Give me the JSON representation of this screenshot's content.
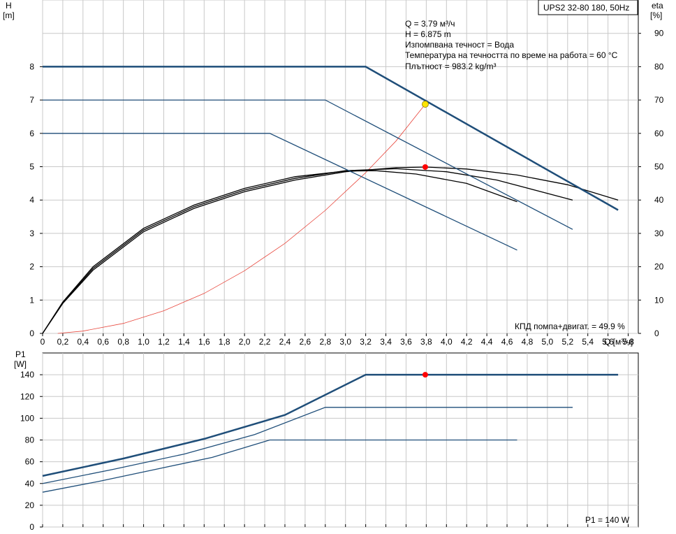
{
  "model_box": "UPS2 32-80 180, 50Hz",
  "info": {
    "q": "Q = 3.79 м³/ч",
    "h": "H = 6.875 m",
    "liquid": "Изпомпвана течност = Вода",
    "temperature": "Температура на течността по време на работа = 60 °C",
    "density": "Плътност = 983.2 kg/m³"
  },
  "efficiency_label": "КПД помпа+двигат. = 49.9 %",
  "power_label": "P1 = 140 W",
  "colors": {
    "curve": "#1f4e79",
    "efficiency": "#000000",
    "system": "#e8463c",
    "duty_point": "#ffe400",
    "marker": "#ff0000",
    "grid": "#c8c8c8"
  },
  "chart_data": [
    {
      "type": "line",
      "title": "",
      "xlabel": "Q [м³/ч]",
      "ylabel": "H\n[m]",
      "y2label": "eta\n[%]",
      "xlim": [
        0,
        5.9
      ],
      "ylim": [
        0,
        10
      ],
      "y2lim": [
        0,
        100
      ],
      "xticks": [
        "0",
        "0,2",
        "0,4",
        "0,6",
        "0,8",
        "1,0",
        "1,2",
        "1,4",
        "1,6",
        "1,8",
        "2,0",
        "2,2",
        "2,4",
        "2,6",
        "2,8",
        "3,0",
        "3,2",
        "3,4",
        "3,6",
        "3,8",
        "4,0",
        "4,2",
        "4,4",
        "4,6",
        "4,8",
        "5,0",
        "5,2",
        "5,4",
        "5,6",
        "5,8"
      ],
      "yticks": [
        "0",
        "1",
        "2",
        "3",
        "4",
        "5",
        "6",
        "7",
        "8"
      ],
      "y2ticks": [
        "0",
        "10",
        "20",
        "30",
        "40",
        "50",
        "60",
        "70",
        "80",
        "90"
      ],
      "grid": true,
      "head_curves": [
        {
          "x": [
            0,
            3.2,
            5.7
          ],
          "y": [
            8,
            8,
            3.7
          ],
          "bold": true
        },
        {
          "x": [
            0,
            2.8,
            5.25
          ],
          "y": [
            7,
            7,
            3.12
          ],
          "bold": false
        },
        {
          "x": [
            0,
            2.25,
            4.7
          ],
          "y": [
            6,
            6,
            2.5
          ],
          "bold": false
        }
      ],
      "efficiency_curves": [
        {
          "x": [
            0,
            0.2,
            0.5,
            1.0,
            1.5,
            2.0,
            2.5,
            3.0,
            3.5,
            3.8,
            4.2,
            4.7,
            5.2,
            5.7
          ],
          "y": [
            0,
            9,
            19,
            30.5,
            37.5,
            42.5,
            46,
            48.5,
            49.7,
            49.9,
            49.3,
            47.5,
            44.6,
            40
          ]
        },
        {
          "x": [
            0,
            0.2,
            0.5,
            1.0,
            1.5,
            2.0,
            2.5,
            3.0,
            3.5,
            4.0,
            4.5,
            5.25
          ],
          "y": [
            0,
            9.2,
            19.5,
            31,
            38,
            43,
            46.5,
            48.8,
            49.4,
            48.5,
            46,
            40
          ]
        },
        {
          "x": [
            0,
            0.2,
            0.5,
            1.0,
            1.5,
            2.0,
            2.5,
            3.0,
            3.3,
            3.7,
            4.2,
            4.7
          ],
          "y": [
            0,
            9.4,
            20,
            31.5,
            38.5,
            43.5,
            47,
            48.7,
            48.8,
            47.8,
            45,
            39.5
          ]
        }
      ],
      "system_curve": {
        "x": [
          0.15,
          0.4,
          0.8,
          1.2,
          1.6,
          2.0,
          2.4,
          2.8,
          3.2,
          3.5,
          3.79
        ],
        "y": [
          0,
          0.07,
          0.3,
          0.68,
          1.2,
          1.88,
          2.7,
          3.69,
          4.82,
          5.77,
          6.875
        ]
      },
      "duty_point": {
        "x": 3.79,
        "y": 6.875
      },
      "efficiency_point": {
        "x": 3.79,
        "y": 49.9
      }
    },
    {
      "type": "line",
      "title": "",
      "xlabel": "",
      "ylabel": "P1\n[W]",
      "xlim": [
        0,
        5.9
      ],
      "ylim": [
        0,
        160
      ],
      "yticks": [
        "0",
        "20",
        "40",
        "60",
        "80",
        "100",
        "120",
        "140"
      ],
      "grid": true,
      "power_curves": [
        {
          "x": [
            0,
            0.8,
            1.6,
            2.4,
            3.2,
            5.7
          ],
          "y": [
            47,
            63,
            81,
            103,
            140,
            140
          ],
          "bold": true
        },
        {
          "x": [
            0,
            0.7,
            1.4,
            2.1,
            2.8,
            5.25
          ],
          "y": [
            40,
            53,
            67,
            85,
            110,
            110
          ],
          "bold": false
        },
        {
          "x": [
            0,
            0.56,
            1.12,
            1.68,
            2.25,
            4.7
          ],
          "y": [
            32,
            42,
            53,
            64,
            80,
            80
          ],
          "bold": false
        }
      ],
      "power_point": {
        "x": 3.79,
        "y": 140
      }
    }
  ]
}
